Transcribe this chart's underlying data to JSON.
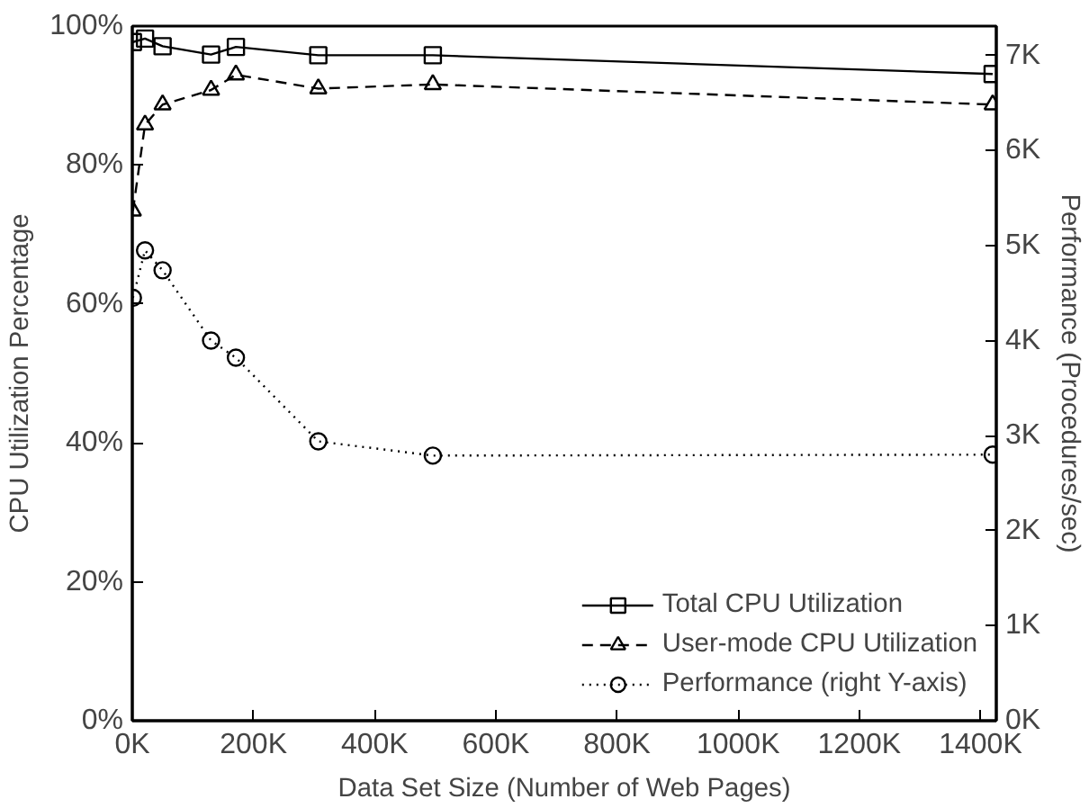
{
  "chart_data": {
    "type": "line",
    "xlabel": "Data Set Size (Number of Web Pages)",
    "ylabel": "CPU Utilization Percentage",
    "y2label": "Performance (Procedures/sec)",
    "series": [
      {
        "name": "Total CPU Utilization",
        "color": "#000000",
        "marker": "square",
        "line_style": "solid",
        "x": [
          1000,
          21000,
          50000,
          130000,
          171000,
          307000,
          496000,
          1420000
        ],
        "values": [
          97.7,
          98.2,
          97.1,
          95.9,
          97.0,
          95.8,
          95.8,
          93.1
        ]
      },
      {
        "name": "User-mode CPU Utilization",
        "color": "#000000",
        "marker": "triangle",
        "line_style": "dashed",
        "x": [
          1000,
          21000,
          50000,
          130000,
          171000,
          307000,
          496000,
          1420000
        ],
        "values": [
          73.4,
          85.8,
          88.7,
          90.8,
          93.0,
          91.0,
          91.6,
          88.7
        ]
      },
      {
        "name": "Performance (right Y-axis)",
        "color": "#000000",
        "marker": "circle",
        "line_style": "dotted",
        "axis": "y2",
        "x": [
          1000,
          21000,
          50000,
          130000,
          171000,
          307000,
          496000,
          1420000
        ],
        "values": [
          4450,
          4950,
          4740,
          4000,
          3820,
          2940,
          2790,
          2800
        ]
      }
    ],
    "xlim": [
      0,
      1426000
    ],
    "ylim": [
      0,
      100
    ],
    "y2lim": [
      0,
      7310
    ],
    "xticks": [
      {
        "value": 0,
        "label": "0K"
      },
      {
        "value": 200000,
        "label": "200K"
      },
      {
        "value": 400000,
        "label": "400K"
      },
      {
        "value": 600000,
        "label": "600K"
      },
      {
        "value": 800000,
        "label": "800K"
      },
      {
        "value": 1000000,
        "label": "1000K"
      },
      {
        "value": 1200000,
        "label": "1200K"
      },
      {
        "value": 1400000,
        "label": "1400K"
      }
    ],
    "yticks": [
      {
        "value": 0,
        "label": "0%"
      },
      {
        "value": 20,
        "label": "20%"
      },
      {
        "value": 40,
        "label": "40%"
      },
      {
        "value": 60,
        "label": "60%"
      },
      {
        "value": 80,
        "label": "80%"
      },
      {
        "value": 100,
        "label": "100%"
      }
    ],
    "y2ticks": [
      {
        "value": 0,
        "label": "0K"
      },
      {
        "value": 1000,
        "label": "1K"
      },
      {
        "value": 2000,
        "label": "2K"
      },
      {
        "value": 3000,
        "label": "3K"
      },
      {
        "value": 4000,
        "label": "4K"
      },
      {
        "value": 5000,
        "label": "5K"
      },
      {
        "value": 6000,
        "label": "6K"
      },
      {
        "value": 7000,
        "label": "7K"
      }
    ],
    "grid": false,
    "legend": "bottom right"
  }
}
